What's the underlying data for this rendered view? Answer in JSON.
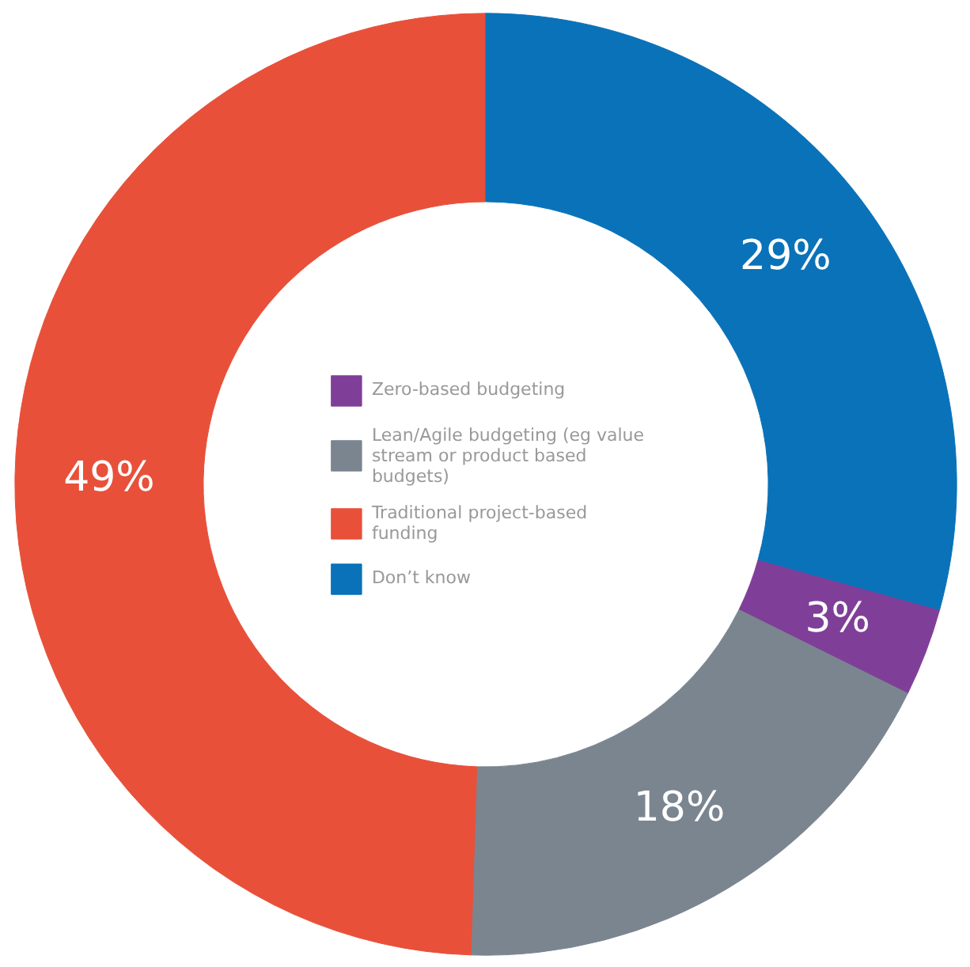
{
  "chart_data": {
    "type": "donut",
    "categories": [
      "Zero-based budgeting",
      "Lean/Agile budgeting (eg value stream or product based budgets)",
      "Traditional project-based funding",
      "Don’t know"
    ],
    "values": [
      3,
      18,
      49,
      29
    ],
    "colors": [
      "#7f3f98",
      "#7a8590",
      "#e8503a",
      "#0a72b8"
    ],
    "value_labels": [
      "3%",
      "18%",
      "49%",
      "29%"
    ],
    "legend": "center"
  }
}
